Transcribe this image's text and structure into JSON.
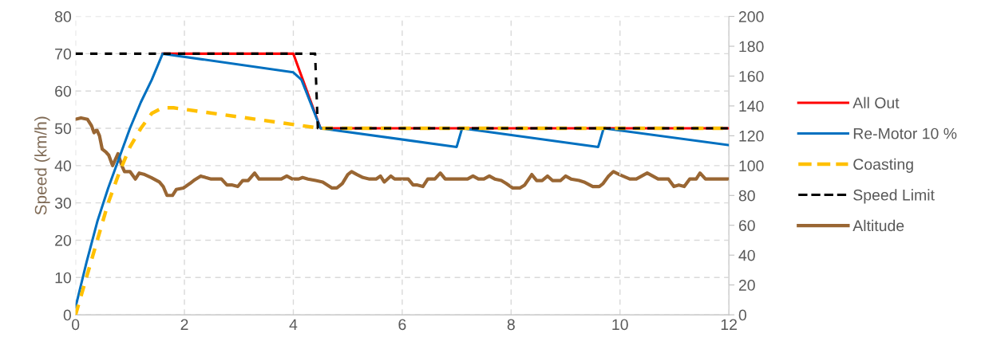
{
  "chart_data": {
    "type": "line",
    "ylabel": "Speed (km/h)",
    "xlim": [
      0,
      12
    ],
    "xticks": [
      0,
      2,
      4,
      6,
      8,
      10,
      12
    ],
    "ylim": [
      0,
      80
    ],
    "yticks": [
      0,
      10,
      20,
      30,
      40,
      50,
      60,
      70,
      80
    ],
    "y2lim": [
      0,
      200
    ],
    "y2ticks": [
      0,
      20,
      40,
      60,
      80,
      100,
      120,
      140,
      160,
      180,
      200
    ],
    "grid": true,
    "legend": "right",
    "series": [
      {
        "name": "All Out",
        "color": "#ff0000",
        "line_style": "solid",
        "x": [
          1.6,
          4.0,
          4.5,
          12
        ],
        "values": [
          70,
          70,
          50,
          50
        ]
      },
      {
        "name": "Re-Motor 10 %",
        "color": "#0070c0",
        "line_style": "solid",
        "x": [
          0,
          0.2,
          0.4,
          0.6,
          0.8,
          1.0,
          1.2,
          1.4,
          1.6,
          4.0,
          4.15,
          4.5,
          7.0,
          7.1,
          9.6,
          9.7,
          12
        ],
        "values": [
          2,
          14,
          25,
          34,
          42,
          50,
          57,
          63,
          70,
          65,
          63,
          50,
          45,
          50,
          45,
          50,
          45.5
        ]
      },
      {
        "name": "Coasting",
        "color": "#ffc000",
        "line_style": "dashed",
        "x": [
          0,
          0.2,
          0.4,
          0.6,
          0.8,
          1.0,
          1.2,
          1.4,
          1.6,
          1.8,
          4.5,
          12
        ],
        "values": [
          0,
          10,
          20,
          30,
          38,
          45,
          50,
          54,
          55.5,
          55.5,
          50,
          50
        ]
      },
      {
        "name": "Speed Limit",
        "color": "#000000",
        "line_style": "dashed",
        "x": [
          0,
          4.4,
          4.45,
          12
        ],
        "values": [
          70,
          70,
          50,
          50
        ]
      },
      {
        "name": "Altitude",
        "color": "#996633",
        "line_style": "solid",
        "axis": "y2",
        "x": [
          0,
          0.1,
          0.22,
          0.29,
          0.34,
          0.39,
          0.44,
          0.49,
          0.56,
          0.61,
          0.68,
          0.78,
          0.85,
          0.9,
          1.0,
          1.1,
          1.17,
          1.27,
          1.39,
          1.54,
          1.61,
          1.68,
          1.78,
          1.85,
          1.98,
          2.1,
          2.17,
          2.3,
          2.39,
          2.49,
          2.68,
          2.78,
          2.88,
          2.98,
          3.07,
          3.17,
          3.29,
          3.37,
          3.78,
          3.88,
          3.98,
          4.1,
          4.17,
          4.27,
          4.41,
          4.54,
          4.71,
          4.8,
          4.9,
          5.0,
          5.07,
          5.17,
          5.28,
          5.4,
          5.52,
          5.6,
          5.67,
          5.79,
          5.86,
          6.11,
          6.2,
          6.28,
          6.38,
          6.47,
          6.6,
          6.7,
          6.79,
          7.2,
          7.3,
          7.4,
          7.5,
          7.6,
          7.7,
          7.82,
          7.91,
          8.03,
          8.16,
          8.25,
          8.38,
          8.47,
          8.57,
          8.67,
          8.76,
          8.91,
          9.0,
          9.1,
          9.25,
          9.34,
          9.5,
          9.62,
          9.69,
          9.79,
          9.88,
          9.99,
          10.18,
          10.3,
          10.5,
          10.7,
          10.89,
          10.99,
          11.08,
          11.18,
          11.28,
          11.4,
          11.47,
          11.57,
          12
        ],
        "values": [
          131,
          132,
          131,
          127,
          122,
          124,
          120,
          111,
          109,
          107,
          100,
          108,
          100,
          96,
          96,
          91,
          95,
          94,
          92,
          89,
          86,
          80,
          80,
          84,
          85,
          88,
          90,
          93,
          92,
          91,
          91,
          87,
          87,
          86,
          90,
          90,
          95,
          91,
          91,
          93,
          91,
          91,
          92,
          91,
          90,
          89,
          85,
          85,
          88,
          94,
          96,
          94,
          92,
          91,
          91,
          93,
          89,
          93,
          91,
          91,
          87,
          87,
          86,
          91,
          91,
          95,
          91,
          91,
          93,
          91,
          91,
          93,
          91,
          90,
          88,
          85,
          85,
          87,
          94,
          90,
          90,
          93,
          90,
          90,
          93,
          91,
          90,
          89,
          86,
          86,
          88,
          93,
          96,
          94,
          91,
          91,
          95,
          91,
          91,
          86,
          87,
          86,
          91,
          91,
          95,
          91,
          91
        ]
      }
    ]
  }
}
